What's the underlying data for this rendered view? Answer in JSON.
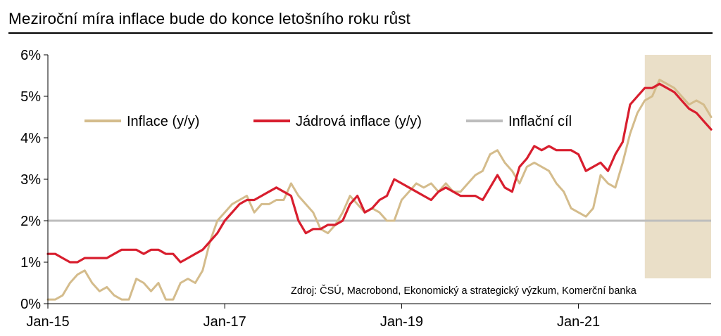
{
  "title": "Meziroční míra inflace bude do konce letošního roku růst",
  "source": "Zdroj: ČSÚ, Macrobond, Ekonomický a strategický výzkum, Komerční banka",
  "colors": {
    "inflation": "#D4BC8C",
    "core": "#D81E2E",
    "target": "#BDBDBD",
    "forecast_band": "#EADFC8",
    "axis": "#000000"
  },
  "chart_data": {
    "type": "line",
    "xlabel": "",
    "ylabel": "",
    "x_range": [
      "2015-01",
      "2022-07"
    ],
    "ylim": [
      0,
      6
    ],
    "y_ticks": [
      "0%",
      "1%",
      "2%",
      "3%",
      "4%",
      "5%",
      "6%"
    ],
    "x_ticks": [
      "Jan-15",
      "Jan-17",
      "Jan-19",
      "Jan-21"
    ],
    "legend_position": "top",
    "forecast_shading": {
      "from": "2021-10",
      "to": "2022-07"
    },
    "target_line": {
      "name": "Inflační cíl",
      "value": 2.0
    },
    "series": [
      {
        "name": "Inflace (y/y)",
        "start": "2015-01",
        "values": [
          0.1,
          0.1,
          0.2,
          0.5,
          0.7,
          0.8,
          0.5,
          0.3,
          0.4,
          0.2,
          0.1,
          0.1,
          0.6,
          0.5,
          0.3,
          0.5,
          0.1,
          0.1,
          0.5,
          0.6,
          0.5,
          0.8,
          1.5,
          2.0,
          2.2,
          2.4,
          2.5,
          2.6,
          2.2,
          2.4,
          2.4,
          2.5,
          2.5,
          2.9,
          2.6,
          2.4,
          2.2,
          1.8,
          1.7,
          1.9,
          2.2,
          2.6,
          2.4,
          2.2,
          2.3,
          2.2,
          2.0,
          2.0,
          2.5,
          2.7,
          2.9,
          2.8,
          2.9,
          2.7,
          2.9,
          2.7,
          2.7,
          2.9,
          3.1,
          3.2,
          3.6,
          3.7,
          3.4,
          3.2,
          2.9,
          3.3,
          3.4,
          3.3,
          3.2,
          2.9,
          2.7,
          2.3,
          2.2,
          2.1,
          2.3,
          3.1,
          2.9,
          2.8,
          3.4,
          4.1,
          4.6,
          4.9,
          5.0,
          5.4,
          5.3,
          5.2,
          5.0,
          4.8,
          4.9,
          4.8,
          4.5
        ]
      },
      {
        "name": "Jádrová inflace (y/y)",
        "start": "2015-01",
        "values": [
          1.2,
          1.2,
          1.1,
          1.0,
          1.0,
          1.1,
          1.1,
          1.1,
          1.1,
          1.2,
          1.3,
          1.3,
          1.3,
          1.2,
          1.3,
          1.3,
          1.2,
          1.2,
          1.0,
          1.1,
          1.2,
          1.3,
          1.5,
          1.7,
          2.0,
          2.2,
          2.4,
          2.5,
          2.5,
          2.6,
          2.7,
          2.8,
          2.7,
          2.6,
          2.0,
          1.7,
          1.8,
          1.8,
          1.9,
          1.9,
          2.0,
          2.4,
          2.6,
          2.2,
          2.3,
          2.5,
          2.6,
          3.0,
          2.9,
          2.8,
          2.7,
          2.6,
          2.5,
          2.7,
          2.8,
          2.7,
          2.6,
          2.6,
          2.6,
          2.5,
          2.8,
          3.1,
          2.8,
          2.7,
          3.3,
          3.5,
          3.8,
          3.7,
          3.8,
          3.7,
          3.7,
          3.7,
          3.6,
          3.2,
          3.3,
          3.4,
          3.2,
          3.6,
          3.9,
          4.8,
          5.0,
          5.2,
          5.2,
          5.3,
          5.2,
          5.1,
          4.9,
          4.7,
          4.6,
          4.4,
          4.2
        ]
      }
    ]
  }
}
